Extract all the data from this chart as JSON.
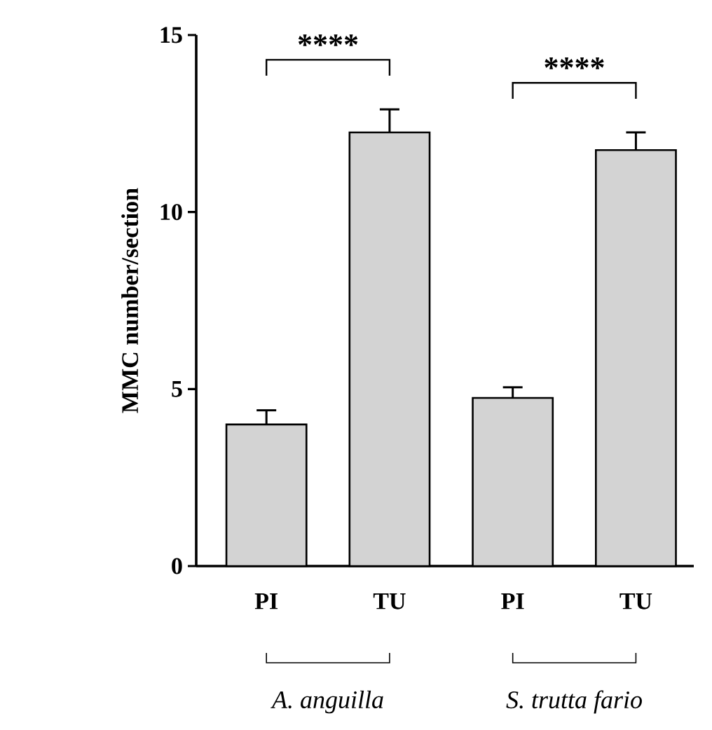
{
  "chart_data": {
    "type": "bar",
    "ylabel": "MMC number/section",
    "categories": [
      "PI",
      "TU",
      "PI",
      "TU"
    ],
    "values": [
      4.0,
      12.25,
      4.75,
      11.75
    ],
    "errors": [
      [
        4.0,
        4.4
      ],
      [
        12.25,
        12.9
      ],
      [
        4.75,
        5.05
      ],
      [
        11.75,
        12.25
      ]
    ],
    "color": "#d3d3d3",
    "ylim": [
      0,
      15
    ],
    "yticks": [
      0,
      5,
      10,
      15
    ],
    "grid": false,
    "annotations": [
      "****",
      "****",
      "A. anguilla",
      "S. trutta fario"
    ]
  }
}
